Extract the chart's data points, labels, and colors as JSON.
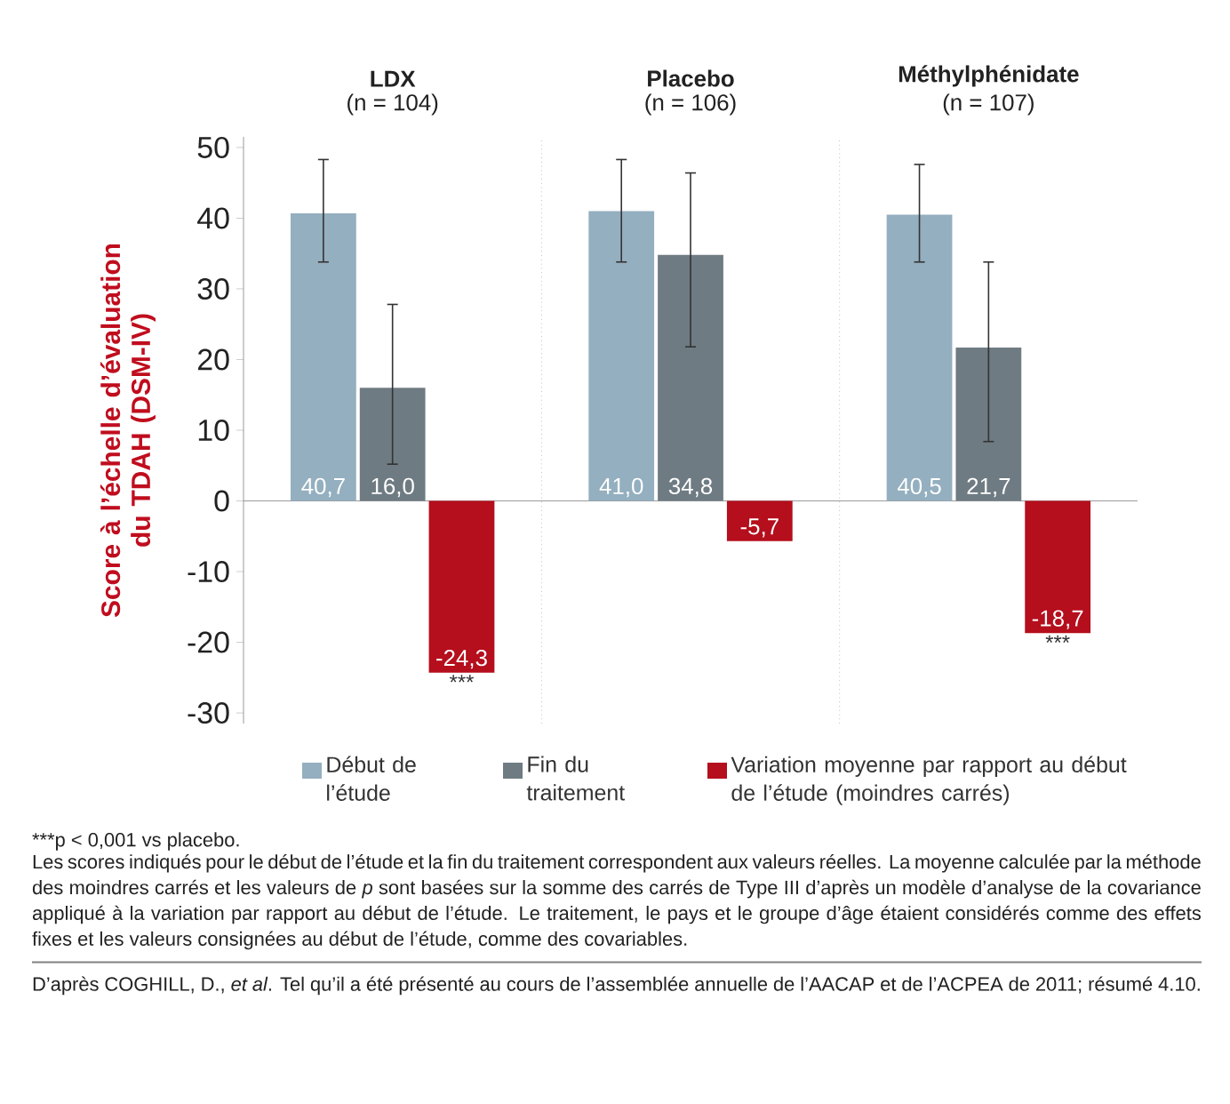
{
  "chart_data": {
    "type": "bar",
    "ylabel": "Score à l’échelle d’évaluation du TDAH (DSM-IV)",
    "categories": [
      "LDX",
      "Placebo",
      "Méthylphénidate"
    ],
    "series": [
      {
        "name": "Début de l’étude",
        "color": "#94afbf",
        "values": [
          40.7,
          41.0,
          40.5
        ],
        "value_labels": [
          "40,7",
          "41,0",
          "40,5"
        ],
        "errors": [
          [
            33.8,
            48.3
          ],
          [
            33.8,
            48.3
          ],
          [
            33.8,
            47.6
          ]
        ]
      },
      {
        "name": "Fin du traitement",
        "color": "#6f7b82",
        "values": [
          16.0,
          34.8,
          21.7
        ],
        "value_labels": [
          "16,0",
          "34,8",
          "21,7"
        ],
        "errors": [
          [
            5.2,
            27.8
          ],
          [
            21.8,
            46.4
          ],
          [
            8.4,
            33.8
          ]
        ]
      },
      {
        "name": "Variation moyenne par rapport au début de l’étude (moindres carrés)",
        "color": "#b50e1c",
        "values": [
          -24.3,
          -5.7,
          -18.7
        ],
        "value_labels": [
          "-24,3",
          "-5,7",
          "-18,7"
        ]
      }
    ],
    "ylim": [
      -31.5,
      51.5
    ],
    "yticks": [
      -30,
      -20,
      -10,
      0,
      10,
      20,
      30,
      40,
      50
    ],
    "legend": "bottom",
    "annotations": [
      "(n = 104)",
      "(n = 106)",
      "(n = 107)",
      "***",
      "***",
      "***p < 0,001 vs placebo.",
      "Les scores indiqués pour le début de l’étude et la fin du traitement correspondent aux valeurs réelles. La moyenne calculée par la méthode des moindres carrés et les valeurs de *p* sont basées sur la somme des carrés de Type III d’après un modèle d’analyse de la covariance appliqué à la variation par rapport au début de l’étude. Le traitement, le pays et le groupe d’âge étaient considérés comme des effets fixes et les valeurs consignées au début de l’étude, comme des covariables.",
      "D’après COGHILL, D., *et al*. Tel qu’il a été présenté au cours de l’assemblée annuelle de l’AACAP et de l’ACPEA de 2011; résumé 4.10."
    ]
  }
}
